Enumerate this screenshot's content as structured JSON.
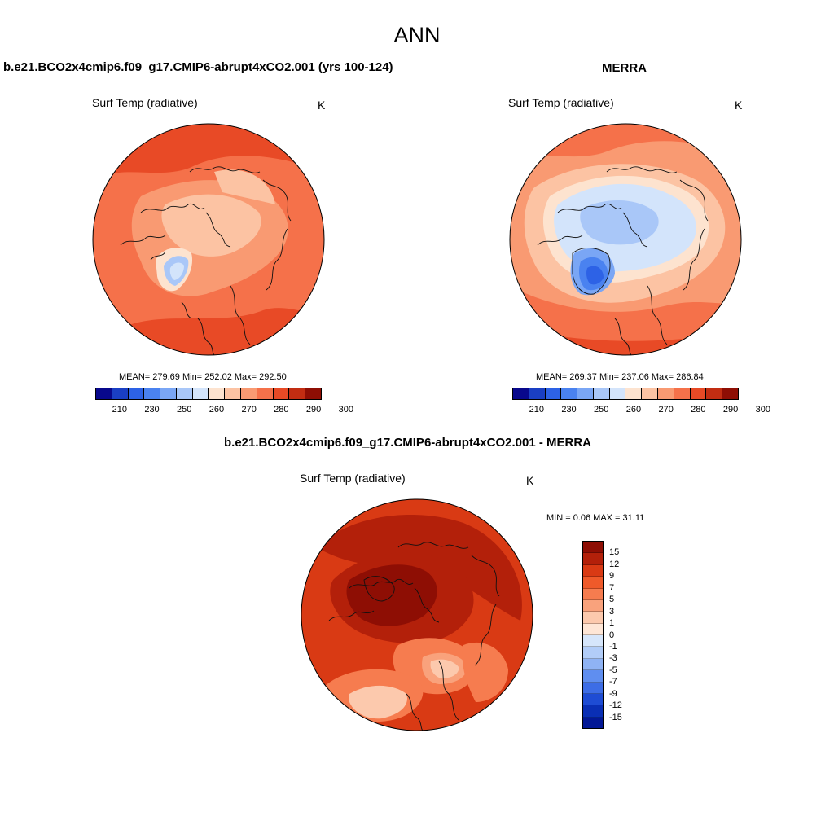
{
  "title": "ANN",
  "panels": {
    "left": {
      "case_title": "b.e21.BCO2x4cmip6.f09_g17.CMIP6-abrupt4xCO2.001 (yrs 100-124)",
      "var_label": "Surf Temp (radiative)",
      "unit": "K",
      "stats": "MEAN= 279.69  Min= 252.02  Max= 292.50",
      "colorbar_ticks": [
        "210",
        "230",
        "250",
        "260",
        "270",
        "280",
        "290",
        "300"
      ]
    },
    "right": {
      "case_title": "MERRA",
      "var_label": "Surf Temp (radiative)",
      "unit": "K",
      "stats": "MEAN= 269.37  Min= 237.06  Max= 286.84",
      "colorbar_ticks": [
        "210",
        "230",
        "250",
        "260",
        "270",
        "280",
        "290",
        "300"
      ]
    },
    "diff": {
      "case_title": "b.e21.BCO2x4cmip6.f09_g17.CMIP6-abrupt4xCO2.001 - MERRA",
      "var_label": "Surf Temp (radiative)",
      "unit": "K",
      "stats": "MIN =   0.06 MAX =  31.11",
      "colorbar_ticks": [
        "15",
        "12",
        "9",
        "7",
        "5",
        "3",
        "1",
        "0",
        "-1",
        "-3",
        "-5",
        "-7",
        "-9",
        "-12",
        "-15"
      ]
    }
  },
  "colors": {
    "abs_scale": [
      "#08088c",
      "#1a3fc4",
      "#2d62e6",
      "#4a82f0",
      "#7aa6f5",
      "#a9c7f8",
      "#d3e4fb",
      "#fde3cf",
      "#fcc3a3",
      "#f99a72",
      "#f5714a",
      "#e84a26",
      "#c22d12",
      "#8e0e04"
    ],
    "diff_scale": [
      "#8e0e04",
      "#b3200a",
      "#d93a14",
      "#ef5a2a",
      "#f67c4f",
      "#f9a27c",
      "#fcc9ad",
      "#fee6d6",
      "#d6e6fb",
      "#b2cdf8",
      "#8fb3f4",
      "#5f8ef0",
      "#3d6de6",
      "#1e4cd4",
      "#0a2fb5",
      "#031896"
    ]
  }
}
